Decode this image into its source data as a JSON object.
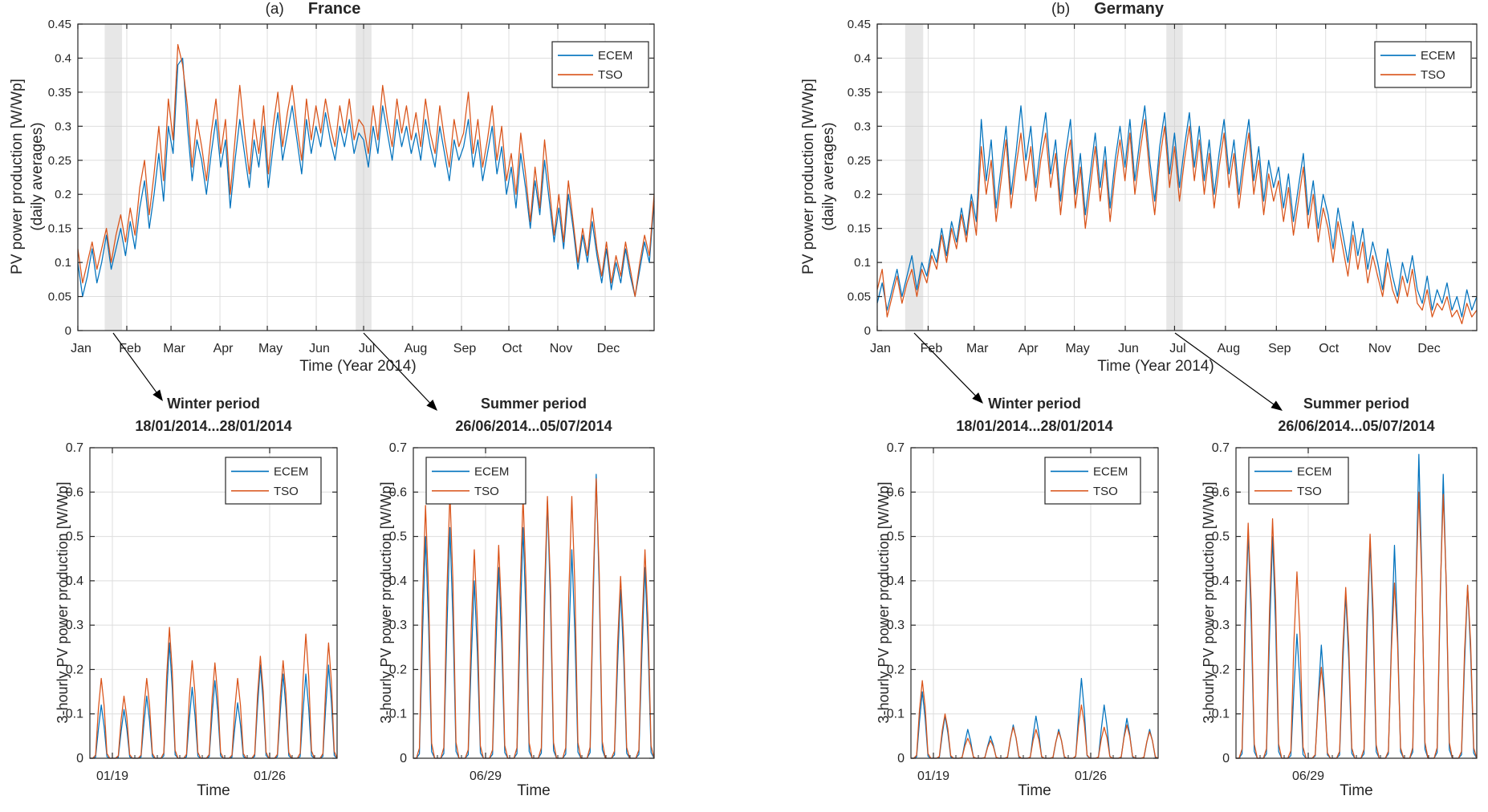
{
  "colors": {
    "ecem": "#0072BD",
    "tso": "#D95319",
    "grid": "#DEDEDE",
    "band": "#C9C9C9",
    "axis": "#262626",
    "text": "#262626",
    "background": "#FFFFFF"
  },
  "legend_labels": [
    "ECEM",
    "TSO"
  ],
  "chart_data": [
    {
      "id": "france-annual",
      "type": "line",
      "panel_label": "(a)",
      "title": "France",
      "xlabel": "Time (Year 2014)",
      "ylabel": "PV power production [W/Wp]",
      "ylabel2": "(daily averages)",
      "ylim": [
        0,
        0.45
      ],
      "yticks": [
        0,
        0.05,
        0.1,
        0.15,
        0.2,
        0.25,
        0.3,
        0.35,
        0.4,
        0.45
      ],
      "grid": true,
      "legend_position": "top-right",
      "months": {
        "labels": [
          "Jan",
          "Feb",
          "Mar",
          "Apr",
          "May",
          "Jun",
          "Jul",
          "Aug",
          "Sep",
          "Oct",
          "Nov",
          "Dec"
        ],
        "start_days": [
          0,
          31,
          59,
          90,
          120,
          151,
          181,
          212,
          243,
          273,
          304,
          334
        ],
        "total_days": 365
      },
      "bands": [
        {
          "label": "winter-highlight",
          "start_day": 17,
          "end_day": 28
        },
        {
          "label": "summer-highlight",
          "start_day": 176,
          "end_day": 186
        }
      ],
      "series": [
        {
          "name": "ECEM",
          "color_key": "ecem",
          "values": [
            0.1,
            0.05,
            0.08,
            0.12,
            0.07,
            0.1,
            0.14,
            0.09,
            0.12,
            0.15,
            0.11,
            0.16,
            0.12,
            0.18,
            0.22,
            0.15,
            0.2,
            0.26,
            0.19,
            0.3,
            0.26,
            0.39,
            0.4,
            0.3,
            0.22,
            0.28,
            0.25,
            0.2,
            0.26,
            0.31,
            0.24,
            0.28,
            0.18,
            0.25,
            0.31,
            0.26,
            0.21,
            0.28,
            0.24,
            0.3,
            0.21,
            0.27,
            0.32,
            0.25,
            0.29,
            0.33,
            0.28,
            0.23,
            0.31,
            0.26,
            0.3,
            0.27,
            0.32,
            0.28,
            0.25,
            0.3,
            0.27,
            0.31,
            0.26,
            0.29,
            0.28,
            0.24,
            0.3,
            0.26,
            0.33,
            0.29,
            0.25,
            0.31,
            0.27,
            0.3,
            0.26,
            0.29,
            0.25,
            0.31,
            0.27,
            0.24,
            0.3,
            0.26,
            0.22,
            0.28,
            0.25,
            0.27,
            0.31,
            0.24,
            0.28,
            0.22,
            0.26,
            0.3,
            0.23,
            0.27,
            0.2,
            0.24,
            0.18,
            0.26,
            0.21,
            0.15,
            0.22,
            0.17,
            0.25,
            0.19,
            0.13,
            0.18,
            0.12,
            0.2,
            0.15,
            0.09,
            0.14,
            0.1,
            0.16,
            0.11,
            0.07,
            0.12,
            0.06,
            0.1,
            0.07,
            0.12,
            0.08,
            0.05,
            0.09,
            0.13,
            0.1,
            0.19
          ]
        },
        {
          "name": "TSO",
          "color_key": "tso",
          "values": [
            0.12,
            0.07,
            0.1,
            0.13,
            0.09,
            0.12,
            0.15,
            0.1,
            0.14,
            0.17,
            0.13,
            0.18,
            0.14,
            0.21,
            0.25,
            0.17,
            0.23,
            0.3,
            0.22,
            0.34,
            0.28,
            0.42,
            0.39,
            0.33,
            0.24,
            0.31,
            0.27,
            0.22,
            0.29,
            0.34,
            0.26,
            0.31,
            0.2,
            0.28,
            0.36,
            0.29,
            0.23,
            0.31,
            0.26,
            0.33,
            0.23,
            0.3,
            0.35,
            0.27,
            0.32,
            0.36,
            0.3,
            0.25,
            0.34,
            0.28,
            0.33,
            0.29,
            0.34,
            0.3,
            0.27,
            0.33,
            0.29,
            0.34,
            0.28,
            0.31,
            0.3,
            0.26,
            0.33,
            0.28,
            0.36,
            0.31,
            0.27,
            0.34,
            0.29,
            0.33,
            0.28,
            0.32,
            0.27,
            0.34,
            0.29,
            0.26,
            0.33,
            0.28,
            0.24,
            0.31,
            0.27,
            0.29,
            0.35,
            0.26,
            0.31,
            0.24,
            0.28,
            0.33,
            0.25,
            0.3,
            0.22,
            0.26,
            0.2,
            0.29,
            0.23,
            0.16,
            0.24,
            0.18,
            0.28,
            0.21,
            0.14,
            0.2,
            0.13,
            0.22,
            0.16,
            0.1,
            0.15,
            0.11,
            0.18,
            0.12,
            0.08,
            0.13,
            0.07,
            0.11,
            0.08,
            0.13,
            0.09,
            0.05,
            0.1,
            0.14,
            0.11,
            0.2
          ]
        }
      ]
    },
    {
      "id": "germany-annual",
      "type": "line",
      "panel_label": "(b)",
      "title": "Germany",
      "xlabel": "Time (Year 2014)",
      "ylabel": "PV power production [W/Wp]",
      "ylabel2": "(daily averages)",
      "ylim": [
        0,
        0.45
      ],
      "yticks": [
        0,
        0.05,
        0.1,
        0.15,
        0.2,
        0.25,
        0.3,
        0.35,
        0.4,
        0.45
      ],
      "grid": true,
      "legend_position": "top-right",
      "months": {
        "labels": [
          "Jan",
          "Feb",
          "Mar",
          "Apr",
          "May",
          "Jun",
          "Jul",
          "Aug",
          "Sep",
          "Oct",
          "Nov",
          "Dec"
        ],
        "start_days": [
          0,
          31,
          59,
          90,
          120,
          151,
          181,
          212,
          243,
          273,
          304,
          334
        ],
        "total_days": 365
      },
      "bands": [
        {
          "label": "winter-highlight",
          "start_day": 17,
          "end_day": 28
        },
        {
          "label": "summer-highlight",
          "start_day": 176,
          "end_day": 186
        }
      ],
      "series": [
        {
          "name": "ECEM",
          "color_key": "ecem",
          "values": [
            0.04,
            0.07,
            0.03,
            0.06,
            0.09,
            0.05,
            0.08,
            0.11,
            0.06,
            0.1,
            0.08,
            0.12,
            0.1,
            0.15,
            0.11,
            0.16,
            0.13,
            0.18,
            0.14,
            0.2,
            0.16,
            0.31,
            0.22,
            0.28,
            0.18,
            0.24,
            0.3,
            0.2,
            0.26,
            0.33,
            0.25,
            0.3,
            0.21,
            0.27,
            0.32,
            0.23,
            0.28,
            0.19,
            0.26,
            0.31,
            0.2,
            0.26,
            0.17,
            0.23,
            0.29,
            0.21,
            0.27,
            0.18,
            0.25,
            0.3,
            0.24,
            0.31,
            0.22,
            0.28,
            0.33,
            0.25,
            0.19,
            0.27,
            0.32,
            0.23,
            0.29,
            0.21,
            0.27,
            0.32,
            0.24,
            0.3,
            0.22,
            0.28,
            0.2,
            0.26,
            0.31,
            0.23,
            0.28,
            0.2,
            0.26,
            0.31,
            0.22,
            0.27,
            0.19,
            0.25,
            0.21,
            0.24,
            0.18,
            0.23,
            0.16,
            0.21,
            0.26,
            0.17,
            0.22,
            0.15,
            0.2,
            0.17,
            0.12,
            0.18,
            0.14,
            0.1,
            0.16,
            0.11,
            0.15,
            0.09,
            0.13,
            0.1,
            0.06,
            0.12,
            0.08,
            0.05,
            0.1,
            0.07,
            0.11,
            0.06,
            0.04,
            0.08,
            0.03,
            0.06,
            0.04,
            0.07,
            0.03,
            0.05,
            0.02,
            0.06,
            0.03,
            0.05
          ]
        },
        {
          "name": "TSO",
          "color_key": "tso",
          "values": [
            0.06,
            0.09,
            0.02,
            0.05,
            0.08,
            0.04,
            0.07,
            0.09,
            0.05,
            0.09,
            0.07,
            0.11,
            0.09,
            0.14,
            0.1,
            0.15,
            0.12,
            0.17,
            0.13,
            0.19,
            0.14,
            0.27,
            0.2,
            0.25,
            0.16,
            0.22,
            0.28,
            0.18,
            0.24,
            0.29,
            0.22,
            0.27,
            0.19,
            0.25,
            0.29,
            0.21,
            0.26,
            0.17,
            0.24,
            0.28,
            0.18,
            0.24,
            0.15,
            0.21,
            0.27,
            0.19,
            0.25,
            0.16,
            0.23,
            0.28,
            0.22,
            0.29,
            0.2,
            0.26,
            0.31,
            0.23,
            0.17,
            0.25,
            0.3,
            0.21,
            0.27,
            0.19,
            0.25,
            0.3,
            0.22,
            0.28,
            0.2,
            0.26,
            0.18,
            0.24,
            0.29,
            0.21,
            0.26,
            0.18,
            0.24,
            0.29,
            0.2,
            0.25,
            0.17,
            0.23,
            0.19,
            0.22,
            0.16,
            0.21,
            0.14,
            0.19,
            0.24,
            0.15,
            0.2,
            0.13,
            0.18,
            0.15,
            0.1,
            0.16,
            0.12,
            0.08,
            0.14,
            0.09,
            0.13,
            0.07,
            0.11,
            0.08,
            0.05,
            0.1,
            0.06,
            0.04,
            0.08,
            0.05,
            0.09,
            0.04,
            0.03,
            0.06,
            0.02,
            0.04,
            0.03,
            0.05,
            0.02,
            0.03,
            0.01,
            0.04,
            0.02,
            0.03
          ]
        }
      ]
    },
    {
      "id": "france-winter",
      "type": "line",
      "title": "Winter period",
      "subtitle": "18/01/2014...28/01/2014",
      "xlabel": "Time",
      "ylabel": "3-hourly PV power production [W/Wp]",
      "ylim": [
        0,
        0.7
      ],
      "yticks": [
        0,
        0.1,
        0.2,
        0.3,
        0.4,
        0.5,
        0.6,
        0.7
      ],
      "grid": true,
      "legend_position": "top-right",
      "days_total": 11,
      "xticks": [
        {
          "label": "01/19",
          "day": 1
        },
        {
          "label": "01/26",
          "day": 8
        }
      ],
      "series": [
        {
          "name": "ECEM",
          "color_key": "ecem",
          "pulse_shape": [
            0,
            0,
            0.02,
            0.55,
            1,
            0.6,
            0.03,
            0
          ],
          "daily_peaks": [
            0.12,
            0.11,
            0.14,
            0.26,
            0.16,
            0.175,
            0.125,
            0.21,
            0.19,
            0.19,
            0.21
          ]
        },
        {
          "name": "TSO",
          "color_key": "tso",
          "pulse_shape": [
            0,
            0,
            0.04,
            0.62,
            1,
            0.66,
            0.06,
            0
          ],
          "daily_peaks": [
            0.18,
            0.14,
            0.18,
            0.295,
            0.22,
            0.215,
            0.18,
            0.23,
            0.22,
            0.28,
            0.26
          ]
        }
      ]
    },
    {
      "id": "france-summer",
      "type": "line",
      "title": "Summer period",
      "subtitle": "26/06/2014...05/07/2014",
      "xlabel": "Time",
      "ylabel": "3-hourly PV power production [W/Wp]",
      "ylim": [
        0,
        0.7
      ],
      "yticks": [
        0,
        0.1,
        0.2,
        0.3,
        0.4,
        0.5,
        0.6,
        0.7
      ],
      "grid": true,
      "legend_position": "top-left",
      "days_total": 10,
      "xticks": [
        {
          "label": "06/29",
          "day": 3
        }
      ],
      "series": [
        {
          "name": "ECEM",
          "color_key": "ecem",
          "pulse_shape": [
            0,
            0,
            0.02,
            0.55,
            1,
            0.6,
            0.03,
            0
          ],
          "daily_peaks": [
            0.5,
            0.52,
            0.4,
            0.43,
            0.52,
            0.58,
            0.47,
            0.64,
            0.38,
            0.43
          ]
        },
        {
          "name": "TSO",
          "color_key": "tso",
          "pulse_shape": [
            0,
            0,
            0.04,
            0.62,
            1,
            0.66,
            0.06,
            0
          ],
          "daily_peaks": [
            0.57,
            0.6,
            0.47,
            0.48,
            0.59,
            0.59,
            0.59,
            0.63,
            0.41,
            0.47
          ]
        }
      ]
    },
    {
      "id": "germany-winter",
      "type": "line",
      "title": "Winter period",
      "subtitle": "18/01/2014...28/01/2014",
      "xlabel": "Time",
      "ylabel": "3-hourly PV power production [W/Wp]",
      "ylim": [
        0,
        0.7
      ],
      "yticks": [
        0,
        0.1,
        0.2,
        0.3,
        0.4,
        0.5,
        0.6,
        0.7
      ],
      "grid": true,
      "legend_position": "top-right",
      "days_total": 11,
      "xticks": [
        {
          "label": "01/19",
          "day": 1
        },
        {
          "label": "01/26",
          "day": 8
        }
      ],
      "series": [
        {
          "name": "ECEM",
          "color_key": "ecem",
          "pulse_shape": [
            0,
            0,
            0.02,
            0.55,
            1,
            0.6,
            0.03,
            0
          ],
          "daily_peaks": [
            0.15,
            0.095,
            0.065,
            0.05,
            0.075,
            0.095,
            0.065,
            0.18,
            0.12,
            0.09,
            0.065
          ]
        },
        {
          "name": "TSO",
          "color_key": "tso",
          "pulse_shape": [
            0,
            0,
            0.04,
            0.62,
            1,
            0.66,
            0.06,
            0
          ],
          "daily_peaks": [
            0.175,
            0.1,
            0.045,
            0.04,
            0.07,
            0.065,
            0.06,
            0.12,
            0.07,
            0.075,
            0.06
          ]
        }
      ]
    },
    {
      "id": "germany-summer",
      "type": "line",
      "title": "Summer period",
      "subtitle": "26/06/2014...05/07/2014",
      "xlabel": "Time",
      "ylabel": "3-hourly PV power production [W/Wp]",
      "ylim": [
        0,
        0.7
      ],
      "yticks": [
        0,
        0.1,
        0.2,
        0.3,
        0.4,
        0.5,
        0.6,
        0.7
      ],
      "grid": true,
      "legend_position": "top-left",
      "days_total": 10,
      "xticks": [
        {
          "label": "06/29",
          "day": 3
        }
      ],
      "series": [
        {
          "name": "ECEM",
          "color_key": "ecem",
          "pulse_shape": [
            0,
            0,
            0.02,
            0.55,
            1,
            0.6,
            0.03,
            0
          ],
          "daily_peaks": [
            0.51,
            0.5,
            0.28,
            0.255,
            0.37,
            0.49,
            0.48,
            0.685,
            0.64,
            0.39
          ]
        },
        {
          "name": "TSO",
          "color_key": "tso",
          "pulse_shape": [
            0,
            0,
            0.04,
            0.62,
            1,
            0.66,
            0.06,
            0
          ],
          "daily_peaks": [
            0.53,
            0.54,
            0.42,
            0.205,
            0.385,
            0.505,
            0.395,
            0.6,
            0.595,
            0.39
          ]
        }
      ]
    }
  ]
}
